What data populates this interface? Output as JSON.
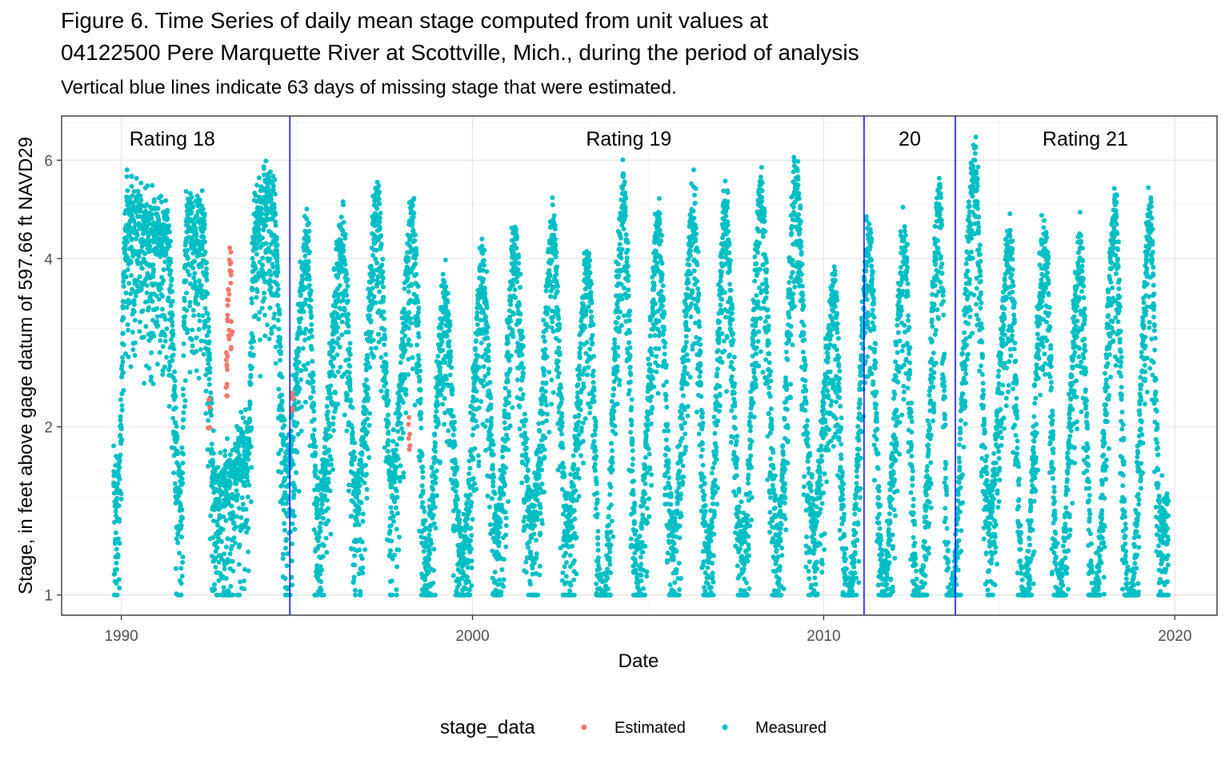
{
  "chart_data": {
    "type": "scatter",
    "title_line1": "Figure 6. Time Series of daily mean stage computed from unit values at",
    "title_line2": "04122500 Pere Marquette River at Scottville, Mich., during the period of analysis",
    "subtitle": "Vertical blue lines indicate 63 days of missing stage that were estimated.",
    "xlabel": "Date",
    "ylabel": "Stage, in feet above gage datum of 597.66 ft NAVD29",
    "xlim": [
      1988.3,
      2021.2
    ],
    "ylim": [
      0.92,
      7.2
    ],
    "y_scale": "log",
    "x_ticks": [
      1990,
      2000,
      2010,
      2020
    ],
    "x_tick_labels": [
      "1990",
      "2000",
      "2010",
      "2020"
    ],
    "y_ticks": [
      1,
      2,
      4,
      6
    ],
    "y_tick_labels": [
      "1",
      "2",
      "4",
      "6"
    ],
    "grid": true,
    "legend": {
      "title": "stage_data",
      "position": "bottom",
      "entries": [
        {
          "name": "Estimated",
          "color": "#F8766D"
        },
        {
          "name": "Measured",
          "color": "#00BFC4"
        }
      ]
    },
    "rating_change_lines": {
      "color": "#0000FF",
      "dates": [
        1994.8,
        2011.15,
        2013.75
      ]
    },
    "rating_labels": [
      {
        "text": "Rating 18",
        "x": 1991.45
      },
      {
        "text": "Rating 19",
        "x": 2004.45
      },
      {
        "text": "20",
        "x": 2012.45
      },
      {
        "text": "Rating 21",
        "x": 2017.45
      }
    ],
    "series": [
      {
        "name": "Measured",
        "color": "#00BFC4",
        "date_range": [
          "1989-10",
          "2019-10"
        ],
        "y_range": [
          1.0,
          6.6
        ],
        "annual_peaks": [
          [
            1990.15,
            5.3
          ],
          [
            1991.3,
            4.9
          ],
          [
            1991.85,
            5.2
          ],
          [
            1992.3,
            5.1
          ],
          [
            1993.8,
            5.2
          ],
          [
            1994.3,
            5.8
          ],
          [
            1995.3,
            4.6
          ],
          [
            1996.3,
            4.7
          ],
          [
            1997.3,
            5.5
          ],
          [
            1998.3,
            5.2
          ],
          [
            1999.2,
            3.7
          ],
          [
            2000.3,
            4.1
          ],
          [
            2001.2,
            4.6
          ],
          [
            2002.3,
            4.8
          ],
          [
            2003.3,
            4.2
          ],
          [
            2004.3,
            5.7
          ],
          [
            2005.3,
            4.9
          ],
          [
            2006.3,
            5.3
          ],
          [
            2007.2,
            5.2
          ],
          [
            2008.2,
            5.7
          ],
          [
            2009.2,
            6.05
          ],
          [
            2010.3,
            3.8
          ],
          [
            2011.3,
            4.7
          ],
          [
            2012.3,
            4.6
          ],
          [
            2013.3,
            5.5
          ],
          [
            2014.3,
            6.5
          ],
          [
            2015.3,
            4.6
          ],
          [
            2016.3,
            4.8
          ],
          [
            2017.3,
            4.5
          ],
          [
            2018.3,
            5.2
          ],
          [
            2019.3,
            5.1
          ]
        ],
        "annual_lows": [
          [
            1989.9,
            1.7
          ],
          [
            1991.7,
            1.6
          ],
          [
            1992.7,
            1.65
          ],
          [
            1993.6,
            2.0
          ],
          [
            1994.7,
            1.85
          ],
          [
            1995.6,
            1.55
          ],
          [
            1996.7,
            1.65
          ],
          [
            1997.7,
            1.8
          ],
          [
            1998.7,
            1.3
          ],
          [
            1999.7,
            1.3
          ],
          [
            2000.7,
            1.45
          ],
          [
            2001.7,
            1.5
          ],
          [
            2002.7,
            1.45
          ],
          [
            2003.7,
            1.02
          ],
          [
            2004.7,
            1.25
          ],
          [
            2005.7,
            1.4
          ],
          [
            2006.7,
            1.3
          ],
          [
            2007.7,
            1.3
          ],
          [
            2008.7,
            1.4
          ],
          [
            2009.7,
            1.5
          ],
          [
            2010.7,
            1.05
          ],
          [
            2011.7,
            1.15
          ],
          [
            2012.7,
            1.0
          ],
          [
            2013.6,
            1.05
          ],
          [
            2014.7,
            1.55
          ],
          [
            2015.7,
            1.1
          ],
          [
            2016.7,
            1.1
          ],
          [
            2017.7,
            1.05
          ],
          [
            2018.7,
            1.02
          ],
          [
            2019.6,
            1.5
          ]
        ]
      },
      {
        "name": "Estimated",
        "color": "#F8766D",
        "points": [
          [
            1992.5,
            2.1
          ],
          [
            1993.0,
            2.3
          ],
          [
            1993.0,
            2.6
          ],
          [
            1993.05,
            3.0
          ],
          [
            1993.05,
            3.4
          ],
          [
            1993.1,
            3.7
          ],
          [
            1993.1,
            4.0
          ],
          [
            1993.15,
            2.9
          ],
          [
            1994.85,
            2.2
          ],
          [
            1998.2,
            1.95
          ]
        ]
      }
    ]
  }
}
